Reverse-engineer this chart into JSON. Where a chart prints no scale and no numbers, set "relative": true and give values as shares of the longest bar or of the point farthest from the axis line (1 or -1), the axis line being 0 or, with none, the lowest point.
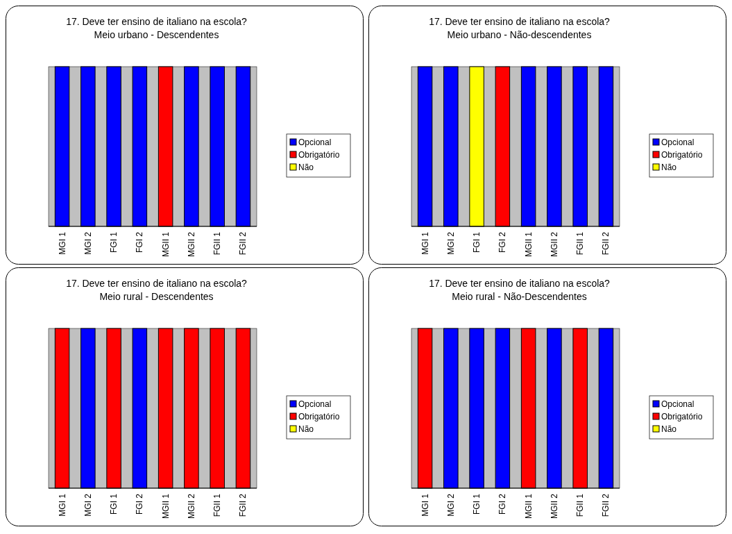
{
  "chart_data": [
    {
      "type": "bar",
      "title": "17. Deve ter ensino de italiano na escola?",
      "subtitle": "Meio urbano - Descendentes",
      "categories": [
        "MGI 1",
        "MGI 2",
        "FGI 1",
        "FGI 2",
        "MGII 1",
        "MGII 2",
        "FGII 1",
        "FGII 2"
      ],
      "stacked": true,
      "relative": true,
      "legend": "right",
      "series": [
        {
          "name": "Opcional",
          "color": "#0000ff",
          "values": [
            1,
            1,
            1,
            1,
            null,
            1,
            1,
            1
          ]
        },
        {
          "name": "Obrigatório",
          "color": "#ff0000",
          "values": [
            null,
            null,
            null,
            null,
            1,
            null,
            null,
            null
          ]
        },
        {
          "name": "Não",
          "color": "#ffff00",
          "values": [
            null,
            null,
            null,
            null,
            null,
            null,
            null,
            null
          ]
        }
      ]
    },
    {
      "type": "bar",
      "title": "17. Deve ter ensino de italiano na escola?",
      "subtitle": "Meio urbano - Não-descendentes",
      "categories": [
        "MGI 1",
        "MGI 2",
        "FGI 1",
        "FGI 2",
        "MGII 1",
        "MGII 2",
        "FGII 1",
        "FGII 2"
      ],
      "stacked": true,
      "relative": true,
      "legend": "right",
      "series": [
        {
          "name": "Opcional",
          "color": "#0000ff",
          "values": [
            1,
            1,
            null,
            null,
            1,
            1,
            1,
            1
          ]
        },
        {
          "name": "Obrigatório",
          "color": "#ff0000",
          "values": [
            null,
            null,
            null,
            1,
            null,
            null,
            null,
            null
          ]
        },
        {
          "name": "Não",
          "color": "#ffff00",
          "values": [
            null,
            null,
            1,
            null,
            null,
            null,
            null,
            null
          ]
        }
      ]
    },
    {
      "type": "bar",
      "title": "17. Deve ter ensino de italiano na escola?",
      "subtitle": "Meio rural - Descendentes",
      "categories": [
        "MGI 1",
        "MGI 2",
        "FGI 1",
        "FGI 2",
        "MGII 1",
        "MGII 2",
        "FGII 1",
        "FGII 2"
      ],
      "stacked": true,
      "relative": true,
      "legend": "right",
      "series": [
        {
          "name": "Opcional",
          "color": "#0000ff",
          "values": [
            null,
            1,
            null,
            1,
            null,
            null,
            null,
            null
          ]
        },
        {
          "name": "Obrigatório",
          "color": "#ff0000",
          "values": [
            1,
            null,
            1,
            null,
            1,
            1,
            1,
            1
          ]
        },
        {
          "name": "Não",
          "color": "#ffff00",
          "values": [
            null,
            null,
            null,
            null,
            null,
            null,
            null,
            null
          ]
        }
      ]
    },
    {
      "type": "bar",
      "title": "17. Deve ter ensino de italiano na escola?",
      "subtitle": "Meio rural - Não-Descendentes",
      "categories": [
        "MGI 1",
        "MGI 2",
        "FGI 1",
        "FGI 2",
        "MGII 1",
        "MGII 2",
        "FGII 1",
        "FGII 2"
      ],
      "stacked": true,
      "relative": true,
      "legend": "right",
      "series": [
        {
          "name": "Opcional",
          "color": "#0000ff",
          "values": [
            null,
            1,
            1,
            1,
            null,
            1,
            null,
            1
          ]
        },
        {
          "name": "Obrigatório",
          "color": "#ff0000",
          "values": [
            1,
            null,
            null,
            null,
            1,
            null,
            1,
            null
          ]
        },
        {
          "name": "Não",
          "color": "#ffff00",
          "values": [
            null,
            null,
            null,
            null,
            null,
            null,
            null,
            null
          ]
        }
      ]
    }
  ]
}
